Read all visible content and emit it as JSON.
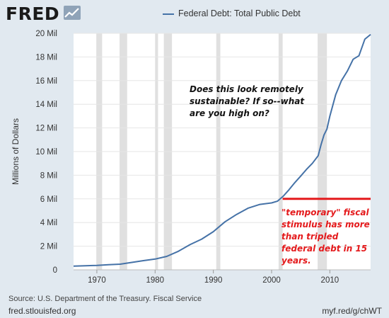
{
  "header": {
    "logo_text": "FRED",
    "logo_icon": "line-chart-icon",
    "legend_label": "Federal Debt: Total Public Debt"
  },
  "annotations": {
    "black_note": "Does this look remotely sustainable? If so--what are you high on?",
    "red_note": "\"temporary\" fiscal stimulus has more than tripled federal debt in 15 years."
  },
  "footer": {
    "source": "Source: U.S. Department of the Treasury. Fiscal Service",
    "site": "fred.stlouisfed.org",
    "short_url": "myf.red/g/chWT"
  },
  "chart_data": {
    "type": "line",
    "ylabel": "Millions of Dollars",
    "ylim": [
      0,
      20
    ],
    "xlim": [
      1966,
      2017
    ],
    "x_ticks": [
      "1970",
      "1980",
      "1990",
      "2000",
      "2010"
    ],
    "y_ticks": [
      "0",
      "2 Mil",
      "4 Mil",
      "6 Mil",
      "8 Mil",
      "10 Mil",
      "12 Mil",
      "14 Mil",
      "16 Mil",
      "18 Mil",
      "20 Mil"
    ],
    "recessions": [
      [
        1969.9,
        1970.9
      ],
      [
        1973.9,
        1975.2
      ],
      [
        1980.0,
        1980.5
      ],
      [
        1981.5,
        1982.9
      ],
      [
        1990.5,
        1991.2
      ],
      [
        2001.2,
        2001.9
      ],
      [
        2007.9,
        2009.5
      ]
    ],
    "reference_line": {
      "y": 6.0,
      "x_start": 2001.9,
      "x_end": 2017,
      "color": "#e41a1c"
    },
    "series": [
      {
        "name": "Federal Debt: Total Public Debt",
        "color": "#4572a7",
        "x": [
          1966,
          1968,
          1970,
          1972,
          1974,
          1976,
          1978,
          1980,
          1982,
          1984,
          1986,
          1988,
          1990,
          1992,
          1994,
          1996,
          1998,
          2000,
          2001,
          2002,
          2003,
          2004,
          2005,
          2006,
          2007,
          2008,
          2008.5,
          2009,
          2009.5,
          2010,
          2011,
          2012,
          2013,
          2014,
          2015,
          2016,
          2016.5,
          2017
        ],
        "values": [
          0.32,
          0.35,
          0.38,
          0.43,
          0.48,
          0.63,
          0.78,
          0.91,
          1.14,
          1.57,
          2.13,
          2.6,
          3.23,
          4.06,
          4.69,
          5.22,
          5.53,
          5.66,
          5.8,
          6.23,
          6.78,
          7.38,
          7.93,
          8.5,
          9.0,
          9.65,
          10.6,
          11.4,
          11.9,
          13.0,
          14.8,
          16.0,
          16.8,
          17.8,
          18.1,
          19.5,
          19.7,
          19.9
        ]
      }
    ]
  }
}
